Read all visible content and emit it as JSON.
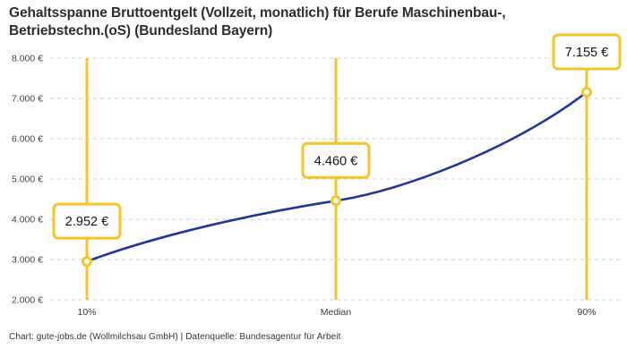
{
  "header": {
    "title_lines": [
      "Gehaltsspanne Bruttoentgelt (Vollzeit, monatlich) für Berufe Maschinenbau-,",
      "Betriebstechn.(oS) (Bundesland Bayern)"
    ]
  },
  "footer": {
    "credit": "Chart: gute-jobs.de (Wollmilchsau GmbH) | Datenquelle: Bundesagentur für Arbeit"
  },
  "chart_data": {
    "type": "line",
    "title": "Gehaltsspanne Bruttoentgelt (Vollzeit, monatlich) für Berufe Maschinenbau-, Betriebstechn.(oS) (Bundesland Bayern)",
    "categories": [
      "10%",
      "Median",
      "90%"
    ],
    "values": [
      2952,
      4460,
      7155
    ],
    "value_labels": [
      "2.952 €",
      "4.460 €",
      "7.155 €"
    ],
    "xlabel": "",
    "ylabel": "",
    "ylim": [
      2000,
      8000
    ],
    "y_ticks": [
      2000,
      3000,
      4000,
      5000,
      6000,
      7000,
      8000
    ],
    "y_tick_labels": [
      "2.000 €",
      "3.000 €",
      "4.000 €",
      "5.000 €",
      "6.000 €",
      "7.000 €",
      "8.000 €"
    ],
    "grid": "horizontal-dashed",
    "legend": "none",
    "colors": {
      "line": "#1f3899",
      "band": "#f7c426",
      "grid": "#cdcdcd",
      "marker_fill": "#ffffff",
      "box_background": "#ffffff",
      "title": "#2d2d2d"
    }
  }
}
